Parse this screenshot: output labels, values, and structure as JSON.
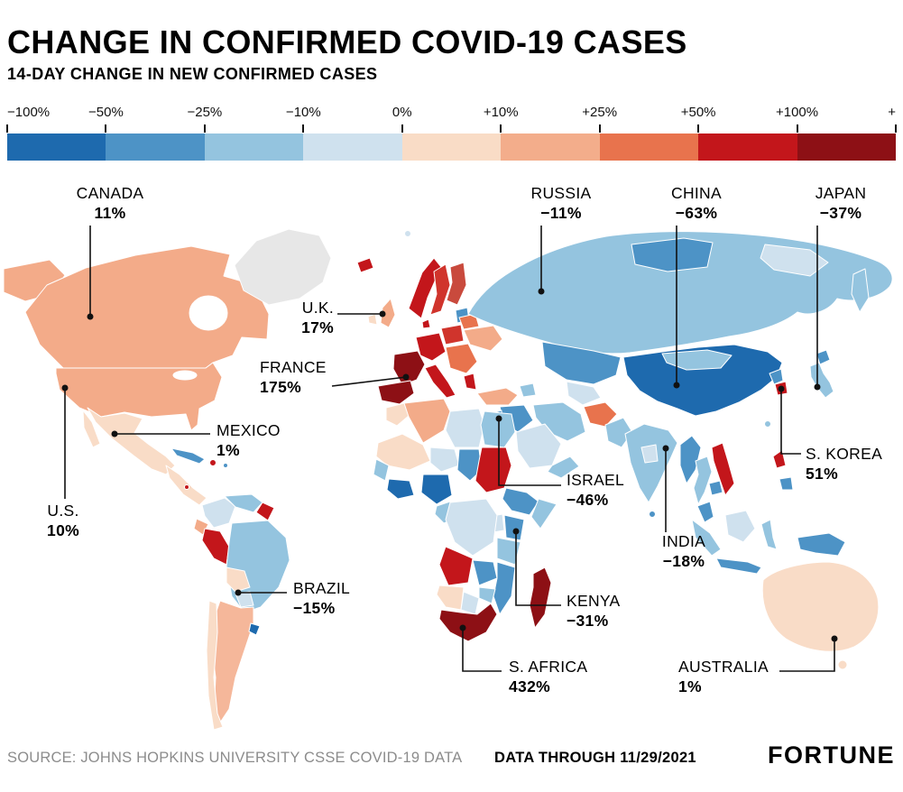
{
  "header": {
    "title": "CHANGE IN CONFIRMED COVID-19 CASES",
    "subtitle": "14-DAY CHANGE IN NEW CONFIRMED CASES"
  },
  "legend": {
    "tick_labels": [
      "−100%",
      "−50%",
      "−25%",
      "−10%",
      "0%",
      "+10%",
      "+25%",
      "+50%",
      "+100%",
      "+"
    ],
    "segment_colors": [
      "#1e6aae",
      "#4d93c6",
      "#94c4df",
      "#cfe1ee",
      "#f9dcc6",
      "#f3ad8b",
      "#e8734d",
      "#c3161b",
      "#8d1015"
    ]
  },
  "callouts": [
    {
      "country": "CANADA",
      "value": "11%"
    },
    {
      "country": "RUSSIA",
      "value": "−11%"
    },
    {
      "country": "CHINA",
      "value": "−63%"
    },
    {
      "country": "JAPAN",
      "value": "−37%"
    },
    {
      "country": "U.K.",
      "value": "17%"
    },
    {
      "country": "FRANCE",
      "value": "175%"
    },
    {
      "country": "MEXICO",
      "value": "1%"
    },
    {
      "country": "U.S.",
      "value": "10%"
    },
    {
      "country": "ISRAEL",
      "value": "−46%"
    },
    {
      "country": "INDIA",
      "value": "−18%"
    },
    {
      "country": "S. KOREA",
      "value": "51%"
    },
    {
      "country": "BRAZIL",
      "value": "−15%"
    },
    {
      "country": "KENYA",
      "value": "−31%"
    },
    {
      "country": "S. AFRICA",
      "value": "432%"
    },
    {
      "country": "AUSTRALIA",
      "value": "1%"
    }
  ],
  "footer": {
    "source": "SOURCE: JOHNS HOPKINS UNIVERSITY CSSE COVID-19 DATA",
    "data_through": "DATA THROUGH 11/29/2021",
    "brand": "FORTUNE"
  },
  "chart_data": {
    "type": "choropleth",
    "title": "Change in confirmed COVID-19 cases",
    "metric": "14-day change in new confirmed cases (%)",
    "data_through": "11/29/2021",
    "source": "Johns Hopkins University CSSE COVID-19 data",
    "color_scale": {
      "bin_boundaries": [
        "−100%",
        "−50%",
        "−25%",
        "−10%",
        "0%",
        "+10%",
        "+25%",
        "+50%",
        "+100%",
        "+"
      ],
      "bin_colors": [
        "#1e6aae",
        "#4d93c6",
        "#94c4df",
        "#cfe1ee",
        "#f9dcc6",
        "#f3ad8b",
        "#e8734d",
        "#c3161b",
        "#8d1015"
      ],
      "no_data_color": "#e7e7e7"
    },
    "labeled_countries": [
      {
        "name": "Canada",
        "change_pct": 11
      },
      {
        "name": "U.S.",
        "change_pct": 10
      },
      {
        "name": "Mexico",
        "change_pct": 1
      },
      {
        "name": "Brazil",
        "change_pct": -15
      },
      {
        "name": "U.K.",
        "change_pct": 17
      },
      {
        "name": "France",
        "change_pct": 175
      },
      {
        "name": "Russia",
        "change_pct": -11
      },
      {
        "name": "Israel",
        "change_pct": -46
      },
      {
        "name": "Kenya",
        "change_pct": -31
      },
      {
        "name": "S. Africa",
        "change_pct": 432
      },
      {
        "name": "India",
        "change_pct": -18
      },
      {
        "name": "China",
        "change_pct": -63
      },
      {
        "name": "S. Korea",
        "change_pct": 51
      },
      {
        "name": "Japan",
        "change_pct": -37
      },
      {
        "name": "Australia",
        "change_pct": 1
      }
    ]
  }
}
